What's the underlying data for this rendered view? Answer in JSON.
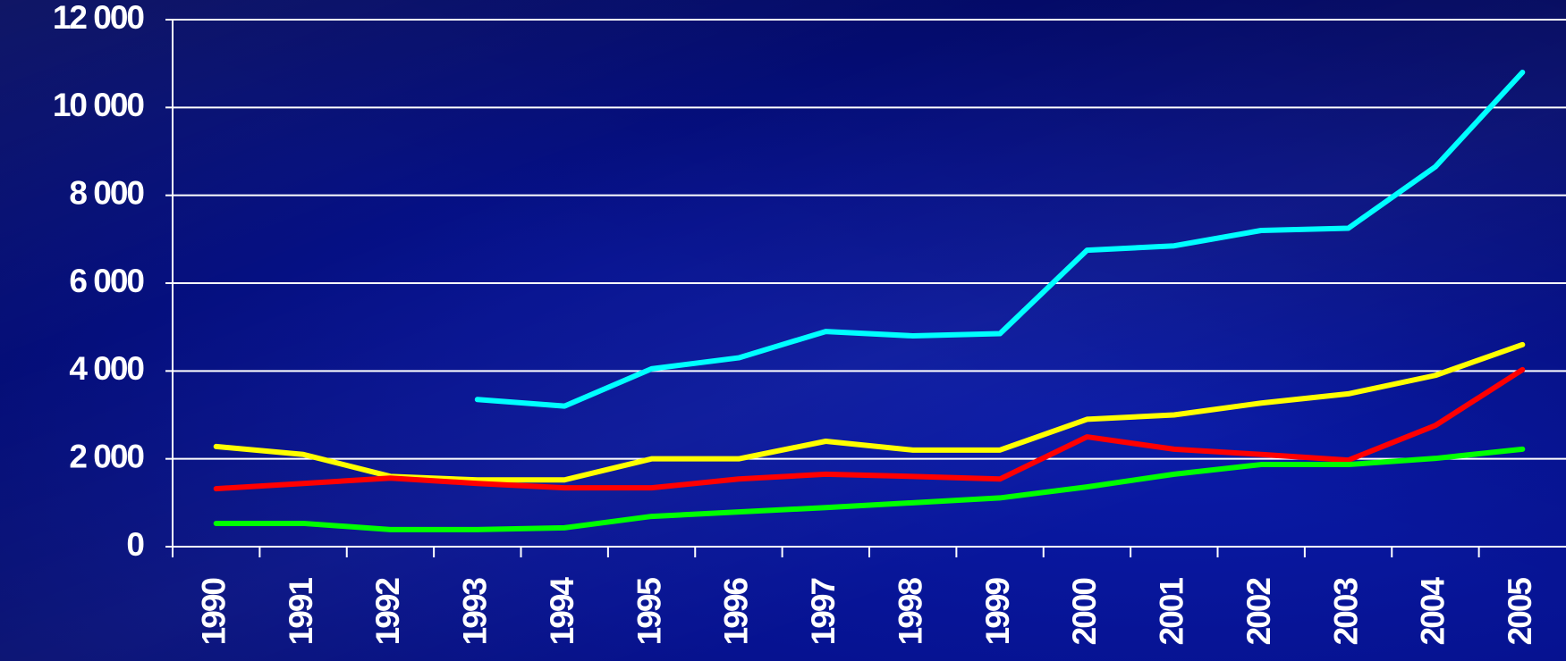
{
  "chart_data": {
    "type": "line",
    "categories": [
      "1990",
      "1991",
      "1992",
      "1993",
      "1994",
      "1995",
      "1996",
      "1997",
      "1998",
      "1999",
      "2000",
      "2001",
      "2002",
      "2003",
      "2004",
      "2005"
    ],
    "series": [
      {
        "color": "#00ffff",
        "values": [
          null,
          null,
          null,
          3350,
          3200,
          4050,
          4300,
          4900,
          4800,
          4850,
          6750,
          6850,
          7200,
          7250,
          8650,
          10800
        ]
      },
      {
        "color": "#ffff00",
        "values": [
          2280,
          2100,
          1600,
          1520,
          1520,
          2000,
          2000,
          2400,
          2200,
          2200,
          2900,
          3000,
          3270,
          3480,
          3900,
          4600
        ]
      },
      {
        "color": "#ff0000",
        "values": [
          1320,
          1440,
          1560,
          1440,
          1340,
          1340,
          1540,
          1650,
          1600,
          1540,
          2500,
          2220,
          2100,
          1970,
          2760,
          4030
        ]
      },
      {
        "color": "#00ff00",
        "values": [
          530,
          530,
          390,
          390,
          430,
          690,
          790,
          890,
          1000,
          1110,
          1360,
          1650,
          1870,
          1870,
          2010,
          2220
        ]
      }
    ],
    "ylim": [
      0,
      12000
    ],
    "yticks": [
      0,
      {
        "value": 2000,
        "label": "2 000"
      },
      {
        "value": 4000,
        "label": "4 000"
      },
      {
        "value": 6000,
        "label": "6 000"
      },
      {
        "value": 8000,
        "label": "8 000"
      },
      {
        "value": 10000,
        "label": "10 000"
      },
      {
        "value": 12000,
        "label": "12 000"
      }
    ],
    "grid": true
  }
}
